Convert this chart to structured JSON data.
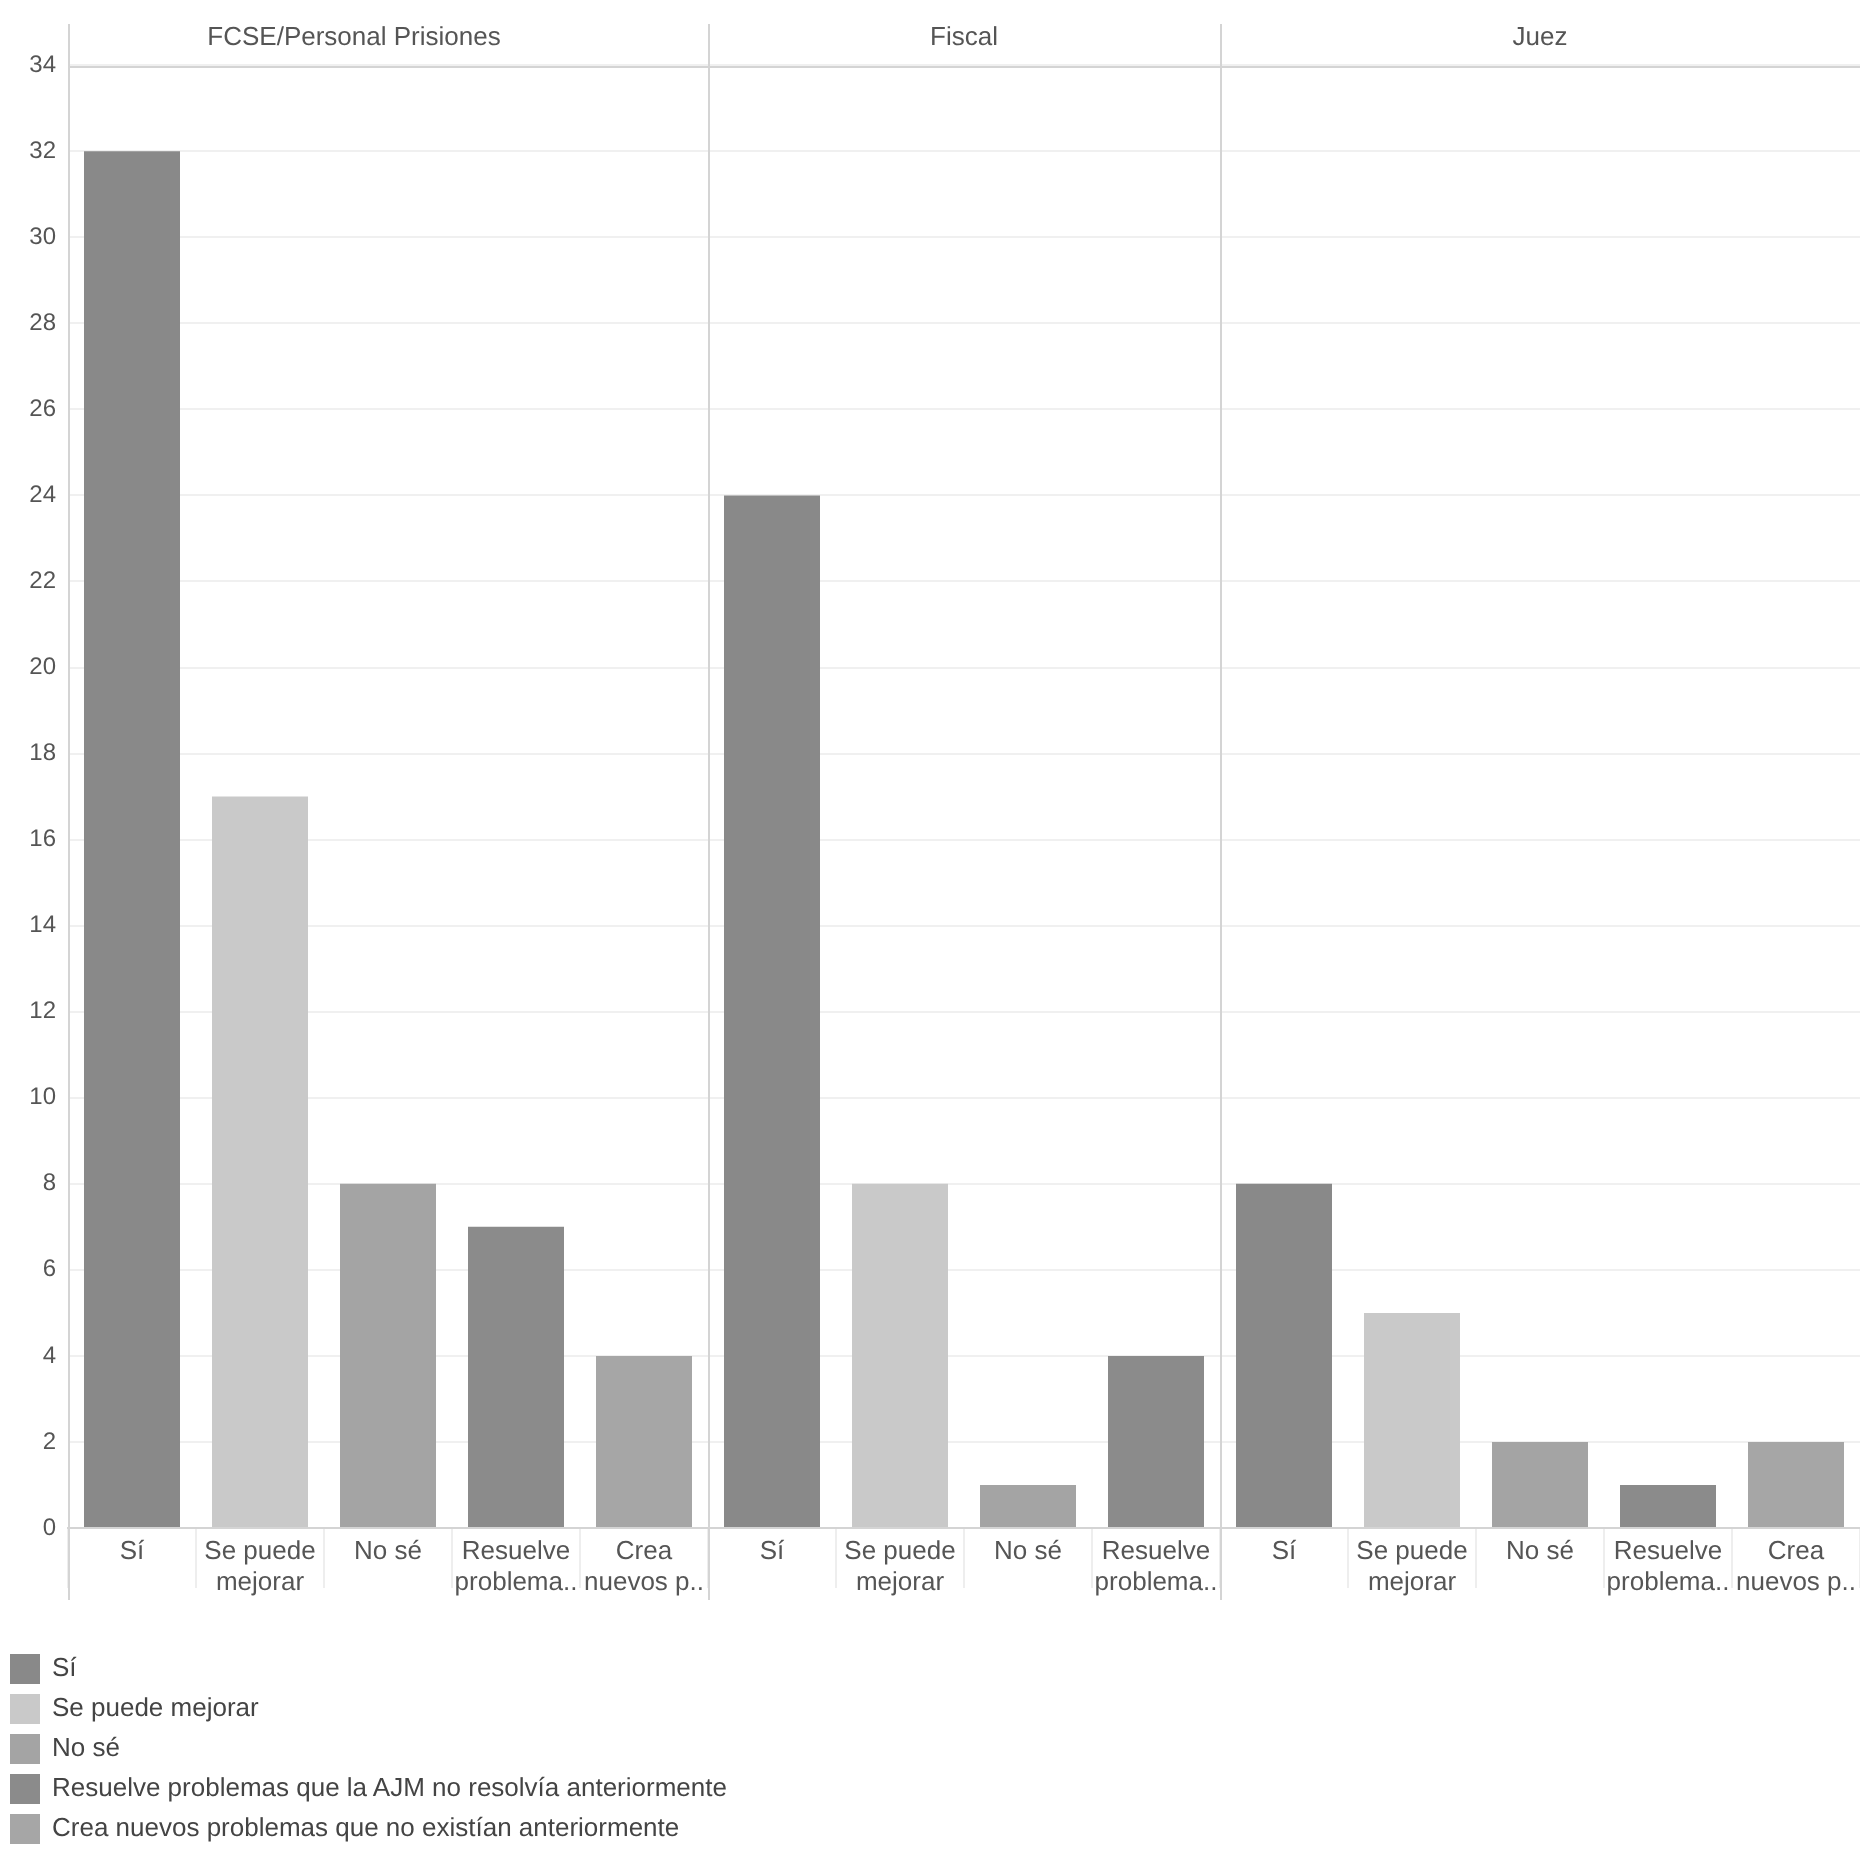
{
  "chart_data": [
    {
      "type": "bar",
      "title": "FCSE/Personal Prisiones",
      "categories": [
        "Sí",
        "Se puede mejorar",
        "No sé",
        "Resuelve problema..",
        "Crea nuevos p.."
      ],
      "series": [
        {
          "name": "Sí",
          "color": "#898989",
          "values": [
            32,
            null,
            null,
            null,
            null
          ]
        },
        {
          "name": "Se puede mejorar",
          "color": "#c9c9c9",
          "values": [
            null,
            17,
            null,
            null,
            null
          ]
        },
        {
          "name": "No sé",
          "color": "#a4a4a4",
          "values": [
            null,
            null,
            8,
            null,
            null
          ]
        },
        {
          "name": "Resuelve problemas que la AJM no resolvía anteriormente",
          "color": "#8b8b8b",
          "values": [
            null,
            null,
            null,
            7,
            null
          ]
        },
        {
          "name": "Crea nuevos problemas que no existían anteriormente",
          "color": "#a6a6a6",
          "values": [
            null,
            null,
            null,
            null,
            4
          ]
        }
      ],
      "ylim": [
        0,
        34
      ],
      "yticks": [
        0,
        2,
        4,
        6,
        8,
        10,
        12,
        14,
        16,
        18,
        20,
        22,
        24,
        26,
        28,
        30,
        32,
        34
      ],
      "grid": "y",
      "legend": "bottom"
    },
    {
      "type": "bar",
      "title": "Fiscal",
      "categories": [
        "Sí",
        "Se puede mejorar",
        "No sé",
        "Resuelve problema.."
      ],
      "series": [
        {
          "color": "#898989",
          "values": [
            24,
            null,
            null,
            null
          ]
        },
        {
          "color": "#c9c9c9",
          "values": [
            null,
            8,
            null,
            null
          ]
        },
        {
          "color": "#a4a4a4",
          "values": [
            null,
            null,
            1,
            null
          ]
        },
        {
          "color": "#8b8b8b",
          "values": [
            null,
            null,
            null,
            4
          ]
        }
      ],
      "ylim": [
        0,
        34
      ],
      "yticks": [
        0,
        2,
        4,
        6,
        8,
        10,
        12,
        14,
        16,
        18,
        20,
        22,
        24,
        26,
        28,
        30,
        32,
        34
      ],
      "grid": "y",
      "tick_labels": "x"
    },
    {
      "type": "bar",
      "title": "Juez",
      "categories": [
        "Sí",
        "Se puede mejorar",
        "No sé",
        "Resuelve problema..",
        "Crea nuevos p.."
      ],
      "series": [
        {
          "color": "#898989",
          "values": [
            8,
            null,
            null,
            null,
            null
          ]
        },
        {
          "color": "#c9c9c9",
          "values": [
            null,
            5,
            null,
            null,
            null
          ]
        },
        {
          "color": "#a4a4a4",
          "values": [
            null,
            null,
            2,
            null,
            null
          ]
        },
        {
          "color": "#8b8b8b",
          "values": [
            null,
            null,
            null,
            1,
            null
          ]
        },
        {
          "color": "#a6a6a6",
          "values": [
            null,
            null,
            null,
            null,
            2
          ]
        }
      ],
      "ylim": [
        0,
        34
      ],
      "yticks": [
        0,
        2,
        4,
        6,
        8,
        10,
        12,
        14,
        16,
        18,
        20,
        22,
        24,
        26,
        28,
        30,
        32,
        34
      ],
      "grid": "y",
      "tick_labels": "x"
    }
  ]
}
